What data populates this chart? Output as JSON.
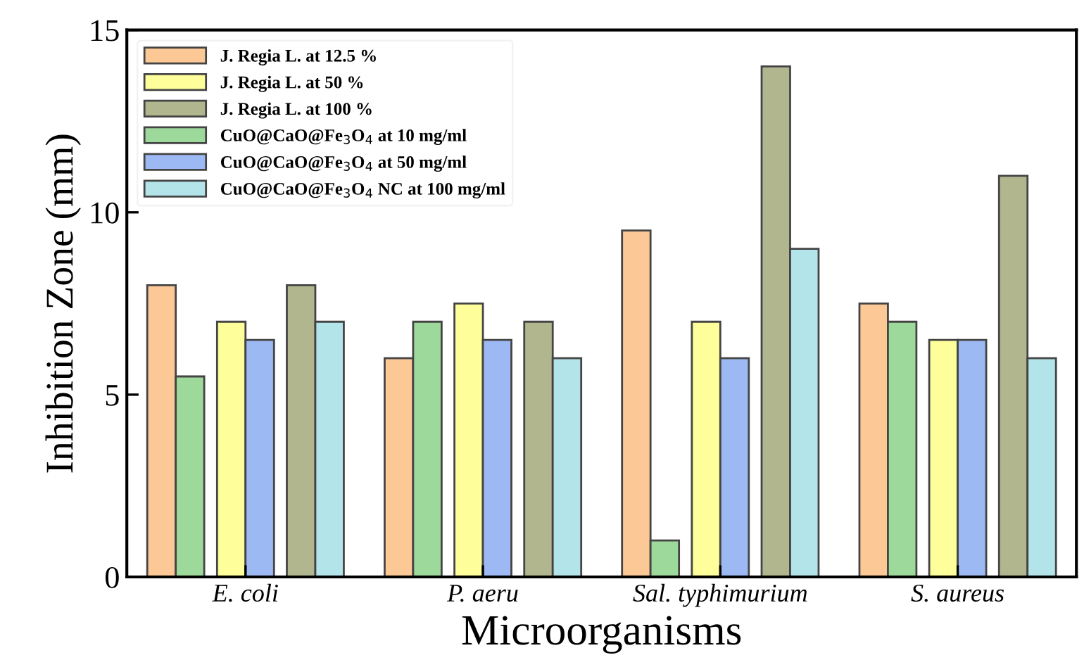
{
  "chart_data": {
    "type": "bar",
    "xlabel": "Microorganisms",
    "ylabel": "Inhibition Zone (mm)",
    "categories": [
      "E. coli",
      "P. aeru",
      "Sal. typhimurium",
      "S. aureus"
    ],
    "series": [
      {
        "name": "J. Regia L. at 12.5 %",
        "color": "#fcc896",
        "values": [
          8,
          6,
          9.5,
          7.5
        ]
      },
      {
        "name": "J. Regia L. at 50 %",
        "color": "#fefe9a",
        "values": [
          7,
          7.5,
          7,
          6.5
        ]
      },
      {
        "name": "J. Regia L. at 100 %",
        "color": "#b2b68f",
        "values": [
          8,
          7,
          14,
          11
        ]
      },
      {
        "name": "CuO@CaO@Fe$_{3}$O$_{4}$ at 10 mg/ml",
        "color": "#9ed99c",
        "values": [
          5.5,
          7,
          1,
          7
        ]
      },
      {
        "name": "CuO@CaO@Fe$_{3}$O$_{4}$ at 50 mg/ml",
        "color": "#9db9f3",
        "values": [
          6.5,
          6.5,
          6,
          6.5
        ]
      },
      {
        "name": "CuO@CaO@Fe$_{3}$O$_{4}$ NC at 100 mg/ml",
        "color": "#b3e4ea",
        "values": [
          7,
          6,
          9,
          6
        ]
      }
    ],
    "ylim": [
      0,
      15
    ],
    "yticks": [
      0,
      5,
      10,
      15
    ],
    "grid": false,
    "legend": "top left"
  }
}
